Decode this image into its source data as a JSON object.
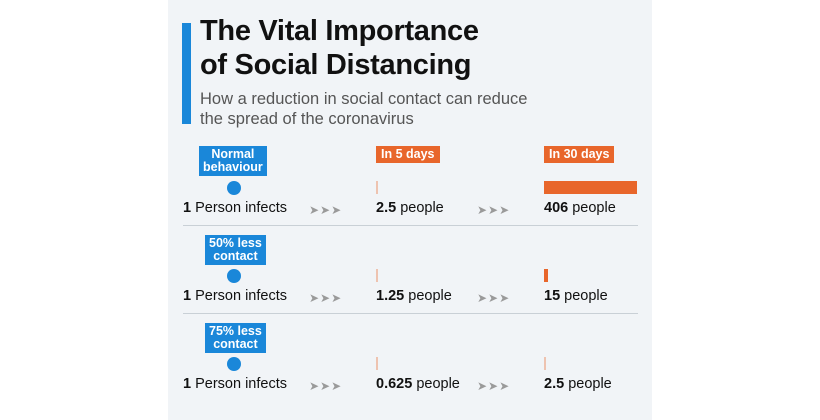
{
  "title_line1": "The Vital Importance",
  "title_line2": "of Social Distancing",
  "subtitle_line1": "How a reduction in social contact can reduce",
  "subtitle_line2": "the spread of the coronavirus",
  "headers": {
    "in5": "In 5 days",
    "in30": "In 30 days"
  },
  "scenarios": [
    {
      "label_line1": "Normal",
      "label_line2": "behaviour",
      "start_value": "1",
      "start_text": "Person infects",
      "day5_value": "2.5",
      "day5_unit": "people",
      "day30_value": "406",
      "day30_unit": "people"
    },
    {
      "label_line1": "50% less",
      "label_line2": "contact",
      "start_value": "1",
      "start_text": "Person infects",
      "day5_value": "1.25",
      "day5_unit": "people",
      "day30_value": "15",
      "day30_unit": "people"
    },
    {
      "label_line1": "75% less",
      "label_line2": "contact",
      "start_value": "1",
      "start_text": "Person infects",
      "day5_value": "0.625",
      "day5_unit": "people",
      "day30_value": "2.5",
      "day30_unit": "people"
    }
  ],
  "arrow_glyph": "➤➤➤",
  "chart_data": {
    "type": "bar",
    "categories": [
      "Normal behaviour",
      "50% less contact",
      "75% less contact"
    ],
    "series": [
      {
        "name": "In 5 days",
        "values": [
          2.5,
          1.25,
          0.625
        ]
      },
      {
        "name": "In 30 days",
        "values": [
          406,
          15,
          2.5
        ]
      }
    ],
    "title": "The Vital Importance of Social Distancing",
    "subtitle": "How a reduction in social contact can reduce the spread of the coronavirus",
    "xlabel": "",
    "ylabel": "",
    "grid": false
  },
  "colors": {
    "blue": "#1a87d9",
    "orange": "#e8662b",
    "panel": "#f1f4f7"
  }
}
